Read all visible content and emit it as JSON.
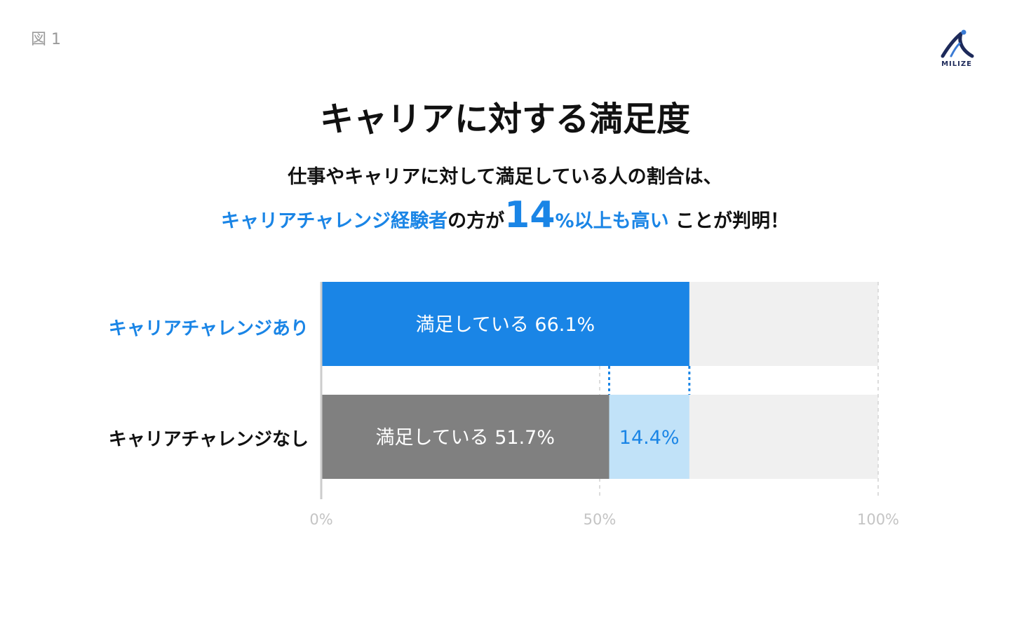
{
  "figure_label": "図 1",
  "logo": {
    "text": "MILIZE",
    "color": "#1d2a5a"
  },
  "title": "キャリアに対する満足度",
  "subtitle": {
    "line1": "仕事やキャリアに対して満足している人の割合は、",
    "line2_blue_part1": "キャリアチャレンジ経験者",
    "line2_mid": "の方が",
    "line2_big_num": "14",
    "line2_pct": "%",
    "line2_blue_part2": "以上も高い",
    "line2_end": " ことが判明！"
  },
  "colors": {
    "accent_blue": "#1a85e6",
    "bar_gray": "#808080",
    "diff_light_blue": "#c1e2f8",
    "track": "#f0f0f0",
    "axis_text": "#c4c4c4"
  },
  "chart_data": {
    "type": "bar",
    "orientation": "horizontal",
    "xlim": [
      0,
      100
    ],
    "ticks": [
      {
        "value": 0,
        "label": "0%"
      },
      {
        "value": 50,
        "label": "50%"
      },
      {
        "value": 100,
        "label": "100%"
      }
    ],
    "rows": [
      {
        "label": "キャリアチャレンジあり",
        "label_color": "#1a85e6",
        "value": 66.1,
        "bar_label": "満足している 66.1%",
        "bar_color": "#1a85e6"
      },
      {
        "label": "キャリアチャレンジなし",
        "label_color": "#111111",
        "value": 51.7,
        "bar_label": "満足している 51.7%",
        "bar_color": "#808080",
        "diff": {
          "value": 14.4,
          "label": "14.4%",
          "color": "#c1e2f8",
          "text_color": "#1a85e6"
        }
      }
    ]
  }
}
